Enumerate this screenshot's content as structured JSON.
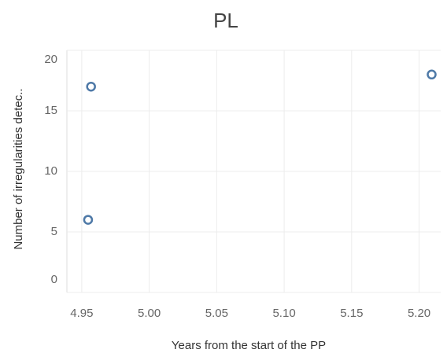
{
  "chart_data": {
    "type": "scatter",
    "title": "PL",
    "x_label": "Years from the start of the PP",
    "y_label": "Number of irregularities detec..",
    "series": [
      {
        "color": "#4e79a7",
        "x": [
          4.9547,
          4.9569,
          5.2093
        ],
        "values": [
          6,
          17,
          18
        ]
      }
    ],
    "xlim": [
      4.939,
      5.216
    ],
    "xticks": [
      4.95,
      {
        "value": 5.0,
        "label": "5.00"
      },
      5.05,
      {
        "value": 5.1,
        "label": "5.10"
      },
      5.15,
      {
        "value": 5.2,
        "label": "5.20"
      }
    ],
    "ylim": [
      0,
      20
    ],
    "yticks": [
      0,
      5,
      10,
      15,
      20
    ],
    "grid": true
  }
}
